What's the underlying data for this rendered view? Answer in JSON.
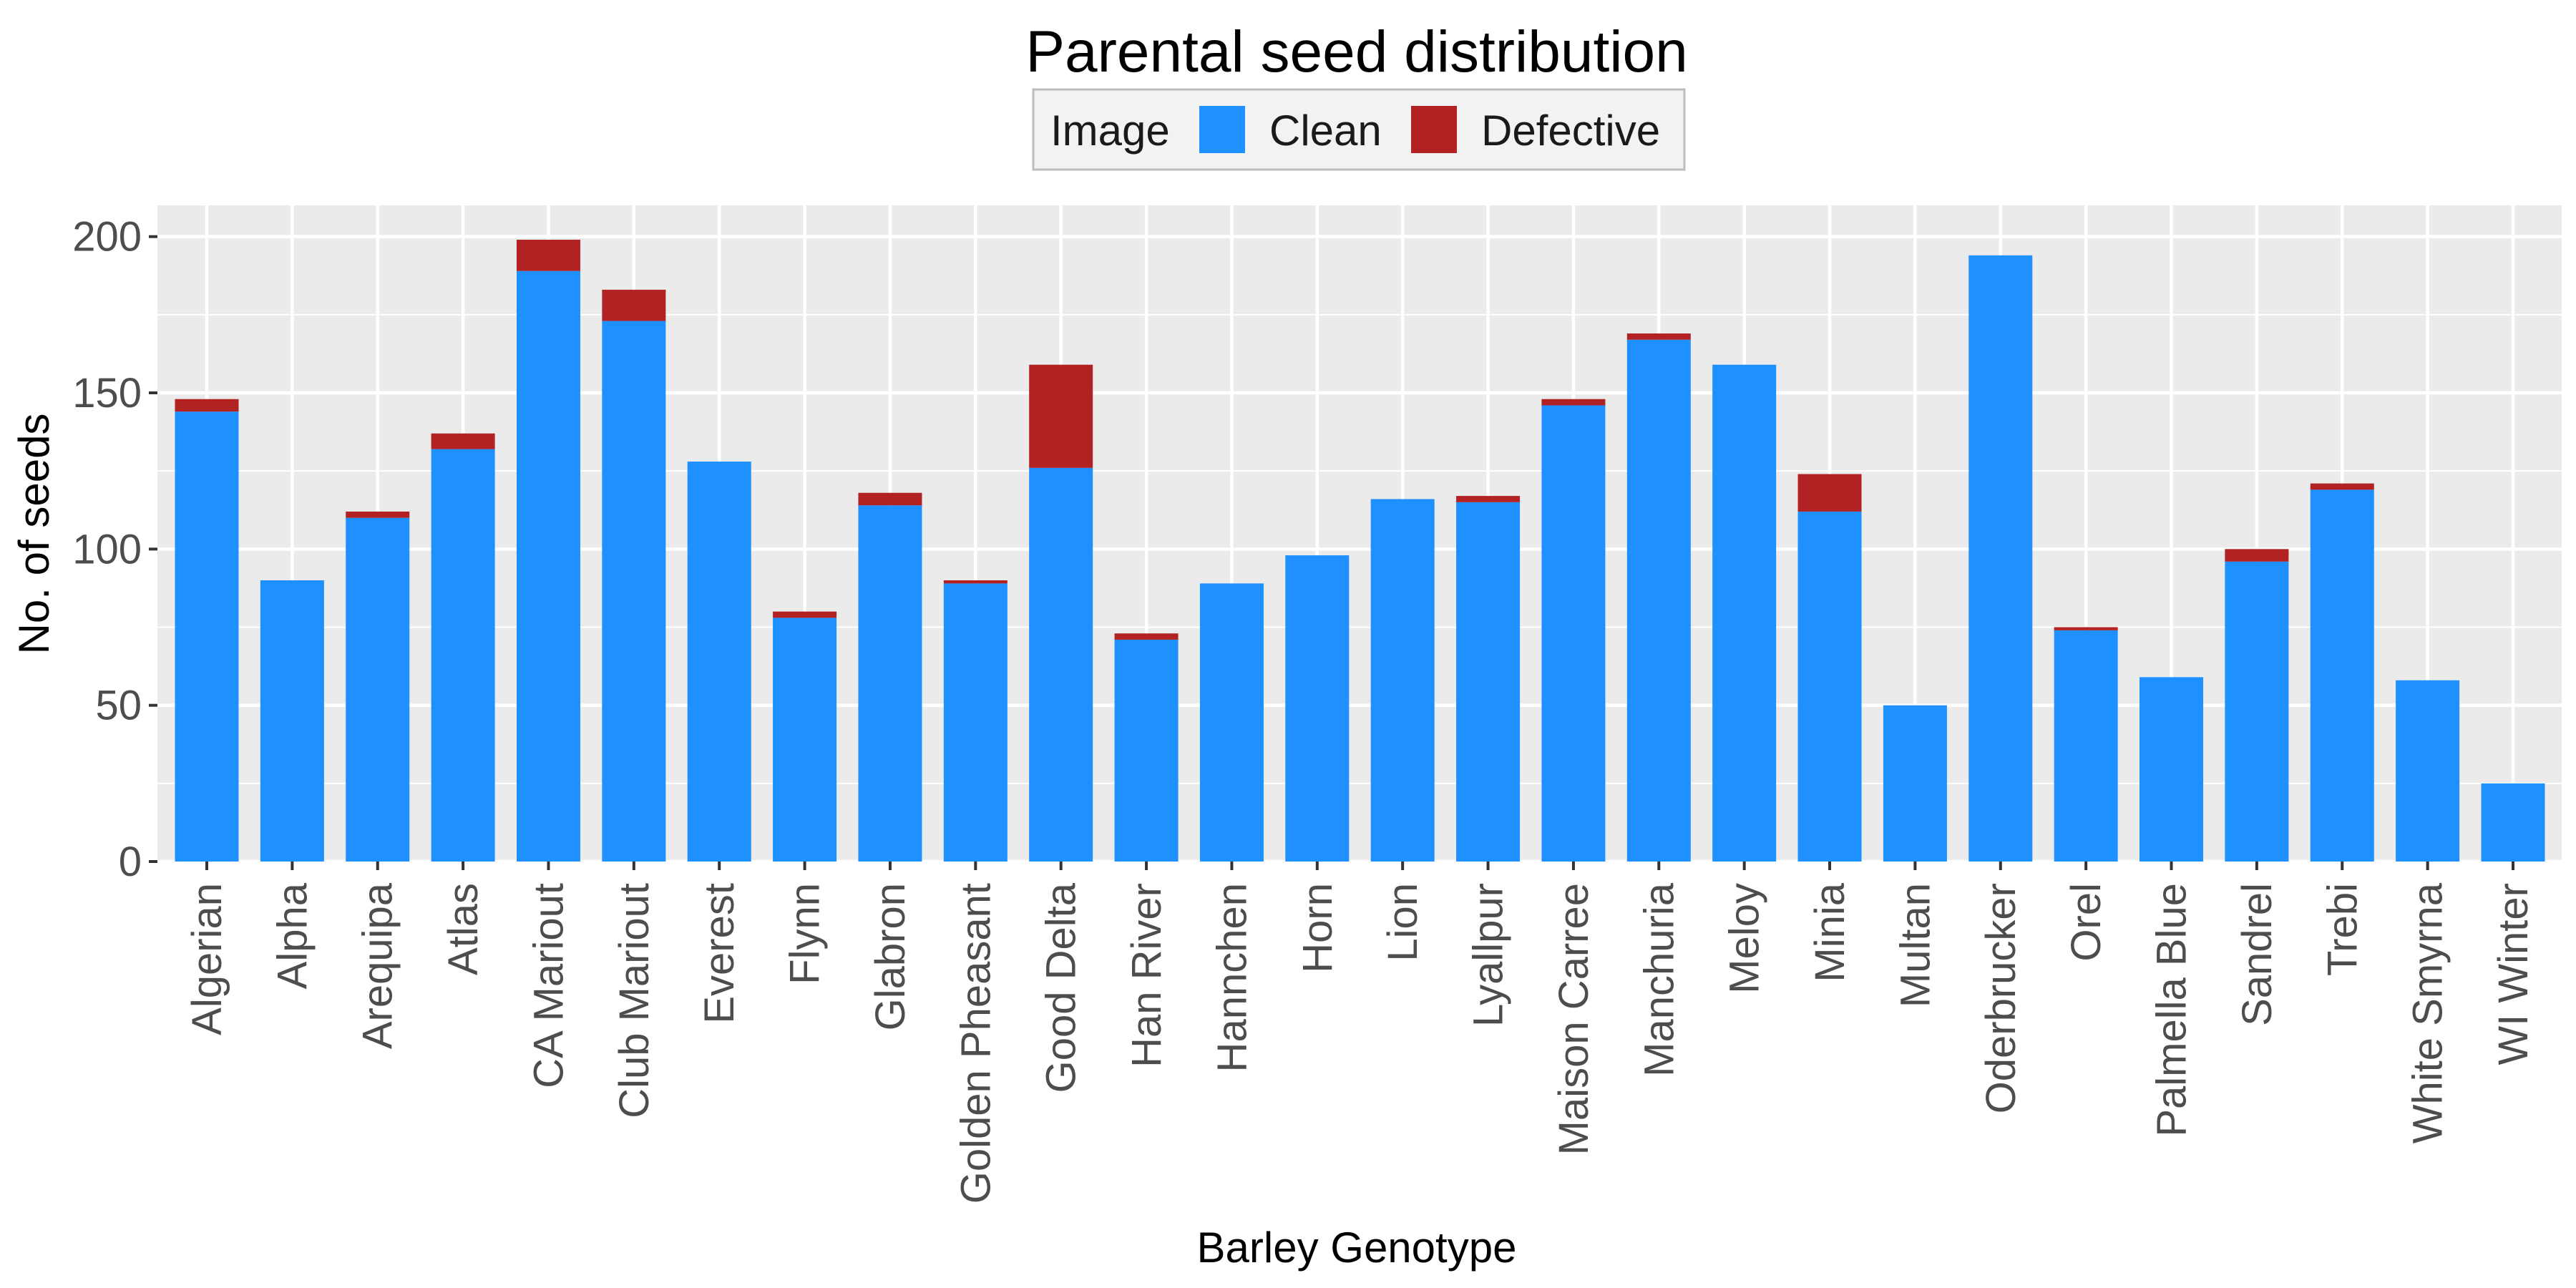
{
  "chart_data": {
    "type": "bar",
    "stacked": true,
    "title": "Parental seed distribution",
    "xlabel": "Barley Genotype",
    "ylabel": "No. of seeds",
    "ylim": [
      0,
      210
    ],
    "yticks": [
      0,
      50,
      100,
      150,
      200
    ],
    "grid": true,
    "legend": {
      "position": "top",
      "title": "Image",
      "entries": [
        "Clean",
        "Defective"
      ]
    },
    "categories": [
      "Algerian",
      "Alpha",
      "Arequipa",
      "Atlas",
      "CA Mariout",
      "Club Mariout",
      "Everest",
      "Flynn",
      "Glabron",
      "Golden Pheasant",
      "Good Delta",
      "Han River",
      "Hannchen",
      "Horn",
      "Lion",
      "Lyallpur",
      "Maison Carree",
      "Manchuria",
      "Meloy",
      "Minia",
      "Multan",
      "Oderbrucker",
      "Orel",
      "Palmella Blue",
      "Sandrel",
      "Trebi",
      "White Smyrna",
      "WI Winter"
    ],
    "series": [
      {
        "name": "Clean",
        "color": "#1E90FF",
        "values": [
          144,
          90,
          110,
          132,
          189,
          173,
          128,
          78,
          114,
          89,
          126,
          71,
          89,
          98,
          116,
          115,
          146,
          167,
          159,
          112,
          50,
          194,
          74,
          59,
          96,
          119,
          58,
          25
        ]
      },
      {
        "name": "Defective",
        "color": "#B22222",
        "values": [
          4,
          0,
          2,
          5,
          10,
          10,
          0,
          2,
          4,
          1,
          33,
          2,
          0,
          0,
          0,
          2,
          2,
          2,
          0,
          12,
          0,
          0,
          1,
          0,
          4,
          2,
          0,
          0
        ]
      }
    ]
  }
}
